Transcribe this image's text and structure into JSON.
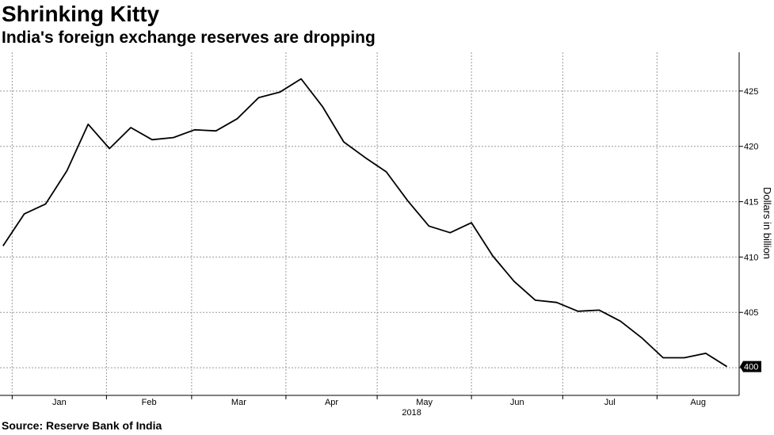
{
  "header": {
    "title": "Shrinking Kitty",
    "subtitle": "India's foreign exchange reserves are dropping"
  },
  "footer": {
    "source": "Source:  Reserve Bank of India"
  },
  "colors": {
    "line": "#000000",
    "grid": "#9a9a9a",
    "axis": "#000000",
    "end_label_bg": "#000000",
    "end_label_text": "#ffffff",
    "background": "#ffffff"
  },
  "chart_data": {
    "type": "line",
    "title": "Shrinking Kitty",
    "subtitle": "India's foreign exchange reserves are dropping",
    "xlabel": "",
    "ylabel": "Dollars in billion",
    "year_label": "2018",
    "x_tick_labels": [
      "Jan",
      "Feb",
      "Mar",
      "Apr",
      "May",
      "Jun",
      "Jul",
      "Aug"
    ],
    "y_ticks": [
      400,
      405,
      410,
      415,
      420,
      425
    ],
    "ylim": [
      397.5,
      428.5
    ],
    "y_axis_side": "right",
    "grid": true,
    "end_value_label": "400",
    "series": [
      {
        "x": [
          "2017-12-29",
          "2018-01-05",
          "2018-01-12",
          "2018-01-19",
          "2018-01-26",
          "2018-02-02",
          "2018-02-09",
          "2018-02-16",
          "2018-02-23",
          "2018-03-02",
          "2018-03-09",
          "2018-03-16",
          "2018-03-23",
          "2018-03-30",
          "2018-04-06",
          "2018-04-13",
          "2018-04-20",
          "2018-04-27",
          "2018-05-04",
          "2018-05-11",
          "2018-05-18",
          "2018-05-25",
          "2018-06-01",
          "2018-06-08",
          "2018-06-15",
          "2018-06-22",
          "2018-06-29",
          "2018-07-06",
          "2018-07-13",
          "2018-07-20",
          "2018-07-27",
          "2018-08-03",
          "2018-08-10",
          "2018-08-17",
          "2018-08-24"
        ],
        "values": [
          411.0,
          413.9,
          414.8,
          417.8,
          422.0,
          419.8,
          421.7,
          420.6,
          420.8,
          421.5,
          421.4,
          422.5,
          424.4,
          424.9,
          426.1,
          423.6,
          420.4,
          419.0,
          417.7,
          415.1,
          412.8,
          412.2,
          413.1,
          410.1,
          407.8,
          406.1,
          405.9,
          405.1,
          405.2,
          404.2,
          402.7,
          400.9,
          400.9,
          401.3,
          400.1
        ]
      }
    ]
  }
}
